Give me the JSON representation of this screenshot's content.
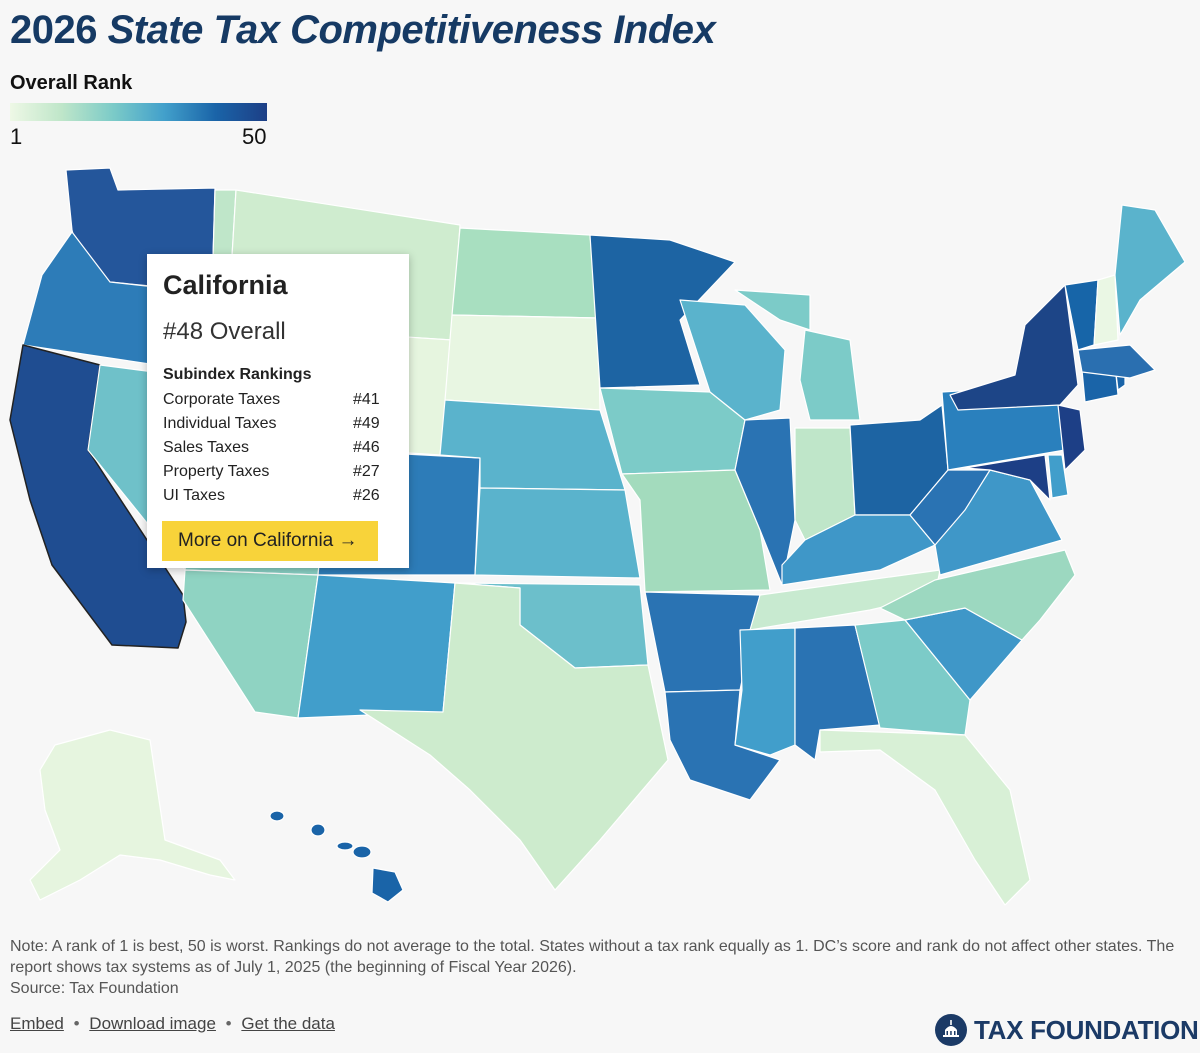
{
  "header": {
    "title_num": "2026",
    "title_main": "State Tax Competitiveness Index"
  },
  "legend": {
    "title": "Overall Rank",
    "min": "1",
    "max": "50",
    "colors": [
      "#eef8e6",
      "#bfe6c9",
      "#7ccbc8",
      "#42a0cb",
      "#1a64a8",
      "#1d3f86"
    ]
  },
  "tooltip": {
    "state": "California",
    "overall": "#48 Overall",
    "subindex_title": "Subindex Rankings",
    "rows": [
      {
        "label": "Corporate Taxes",
        "rank": "#41"
      },
      {
        "label": "Individual Taxes",
        "rank": "#49"
      },
      {
        "label": "Sales Taxes",
        "rank": "#46"
      },
      {
        "label": "Property Taxes",
        "rank": "#27"
      },
      {
        "label": "UI Taxes",
        "rank": "#26"
      }
    ],
    "button": "More on California →"
  },
  "footer": {
    "note": "Note: A rank of 1 is best, 50 is worst. Rankings do not average to the total. States without a tax rank equally as 1. DC’s score and rank do not affect other states. The report shows tax systems as of July 1, 2025 (the beginning of Fiscal Year 2026).",
    "source": "Source: Tax Foundation",
    "links": [
      "Embed",
      "Download image",
      "Get the data"
    ],
    "separator": "•",
    "brand": "TAX FOUNDATION"
  }
}
